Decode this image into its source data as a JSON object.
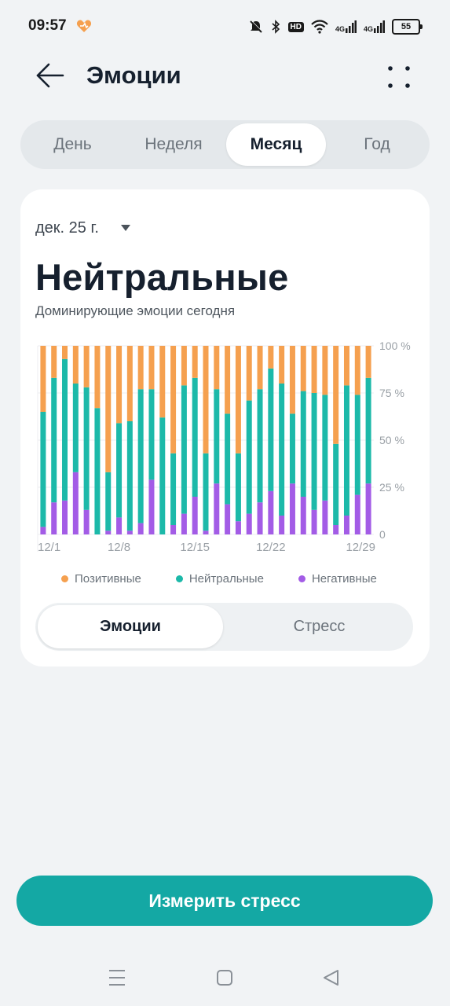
{
  "status_bar": {
    "time": "09:57",
    "hd_label": "HD",
    "net1_label": "4G",
    "net2_label": "4G",
    "battery": "55",
    "icons": [
      "huawei-health-heart-icon",
      "mute-bell-icon",
      "bluetooth-icon",
      "hd-icon",
      "wifi-icon",
      "signal-4g-icon",
      "signal-4g-icon",
      "battery-icon"
    ]
  },
  "header": {
    "title": "Эмоции",
    "back_icon": "arrow-left-icon",
    "more_icon": "four-dots-icon"
  },
  "tabs": [
    {
      "label": "День",
      "selected": false
    },
    {
      "label": "Неделя",
      "selected": false
    },
    {
      "label": "Месяц",
      "selected": true
    },
    {
      "label": "Год",
      "selected": false
    }
  ],
  "card": {
    "date_label": "дек. 25 г.",
    "headline": "Нейтральные",
    "subtitle": "Доминирующие эмоции сегодня"
  },
  "legend": [
    {
      "label": "Позитивные",
      "color": "#f5a04f"
    },
    {
      "label": "Нейтральные",
      "color": "#1cb9a9"
    },
    {
      "label": "Негативные",
      "color": "#a35ce6"
    }
  ],
  "segment": {
    "options": [
      "Эмоции",
      "Стресс"
    ],
    "selected": "Эмоции"
  },
  "measure_button": "Измерить стресс",
  "nav_icons": [
    "menu-icon",
    "home-square-icon",
    "back-triangle-icon"
  ],
  "chart_data": {
    "type": "bar",
    "stacked": true,
    "ylim": [
      0,
      100
    ],
    "y_ticks": [
      "0",
      "25 %",
      "50 %",
      "75 %",
      "100 %"
    ],
    "x_tick_labels": [
      "12/1",
      "12/8",
      "12/15",
      "12/22",
      "12/29"
    ],
    "x_tick_days": [
      1,
      8,
      15,
      22,
      29
    ],
    "days": [
      1,
      2,
      3,
      4,
      5,
      6,
      7,
      8,
      9,
      10,
      11,
      12,
      13,
      14,
      15,
      16,
      17,
      18,
      19,
      20,
      21,
      22,
      23,
      24,
      25,
      26,
      27,
      28,
      29,
      30,
      31
    ],
    "series": [
      {
        "name": "Негативные",
        "color": "#a35ce6",
        "values": [
          4,
          17,
          18,
          33,
          13,
          0,
          2,
          9,
          2,
          6,
          29,
          0,
          5,
          11,
          20,
          2,
          27,
          16,
          7,
          11,
          17,
          23,
          10,
          27,
          20,
          13,
          18,
          5,
          10,
          21,
          27
        ]
      },
      {
        "name": "Нейтральные",
        "color": "#1cb9a9",
        "values": [
          61,
          66,
          75,
          47,
          65,
          67,
          31,
          50,
          58,
          71,
          48,
          62,
          38,
          68,
          63,
          41,
          50,
          48,
          36,
          60,
          60,
          65,
          70,
          37,
          56,
          62,
          56,
          43,
          69,
          53,
          56
        ]
      },
      {
        "name": "Позитивные",
        "color": "#f5a04f",
        "values": [
          35,
          17,
          7,
          20,
          22,
          33,
          67,
          41,
          40,
          23,
          23,
          38,
          57,
          21,
          17,
          57,
          23,
          36,
          57,
          29,
          23,
          12,
          20,
          36,
          24,
          25,
          26,
          52,
          21,
          26,
          17
        ]
      }
    ]
  }
}
